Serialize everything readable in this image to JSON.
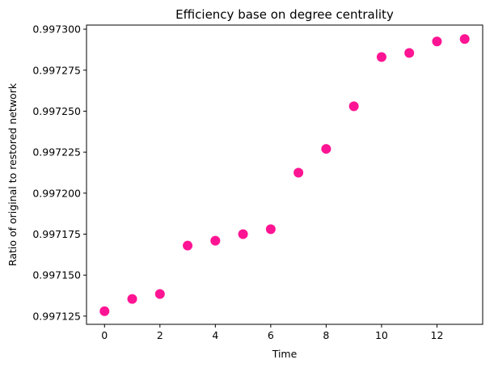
{
  "chart_data": {
    "type": "scatter",
    "title": "Efficiency base on degree centrality",
    "xlabel": "Time",
    "ylabel": "Ratio of original to restored network",
    "x": [
      0,
      1,
      2,
      3,
      4,
      5,
      6,
      7,
      8,
      9,
      10,
      11,
      12,
      13
    ],
    "y": [
      0.997128,
      0.9971355,
      0.9971385,
      0.997168,
      0.997171,
      0.997175,
      0.997178,
      0.9972125,
      0.997227,
      0.997253,
      0.997283,
      0.9972855,
      0.9972925,
      0.997294
    ],
    "xlim": [
      -0.65,
      13.65
    ],
    "ylim": [
      0.99712,
      0.9973025
    ],
    "xticks": [
      0,
      2,
      4,
      6,
      8,
      10,
      12
    ],
    "yticks": [
      0.997125,
      0.99715,
      0.997175,
      0.9972,
      0.997225,
      0.99725,
      0.997275,
      0.9973
    ],
    "xtick_labels": [
      "0",
      "2",
      "4",
      "6",
      "8",
      "10",
      "12"
    ],
    "ytick_labels": [
      "0.997125",
      "0.997150",
      "0.997175",
      "0.997200",
      "0.997225",
      "0.997250",
      "0.997275",
      "0.997300"
    ],
    "marker_color": "#ff1493",
    "grid": false,
    "legend": "none"
  }
}
